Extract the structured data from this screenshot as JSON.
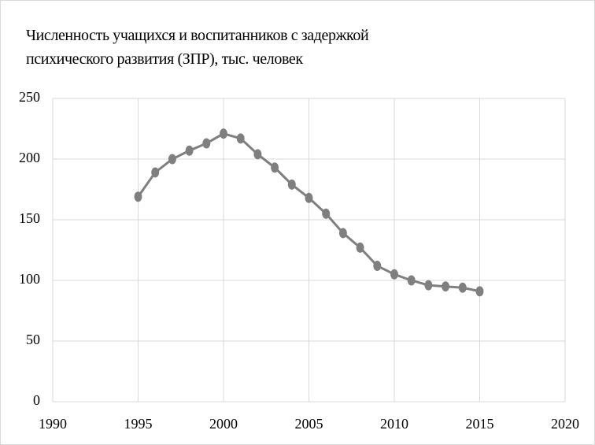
{
  "chart_data": {
    "type": "line",
    "title": "Численность учащихся и воспитанников с задержкой психического развития (ЗПР), тыс. человек",
    "x": [
      1995,
      1996,
      1997,
      1998,
      1999,
      2000,
      2001,
      2002,
      2003,
      2004,
      2005,
      2006,
      2007,
      2008,
      2009,
      2010,
      2011,
      2012,
      2013,
      2014,
      2015
    ],
    "series": [
      {
        "color": "#7f7f7f",
        "values": [
          169,
          189,
          200,
          207,
          213,
          221,
          217,
          204,
          193,
          179,
          168,
          155,
          139,
          127,
          112,
          105,
          100,
          96,
          95,
          94,
          91
        ]
      }
    ],
    "xlim": [
      1990,
      2020
    ],
    "xticks": [
      1990,
      1995,
      2000,
      2005,
      2010,
      2015,
      2020
    ],
    "ylim": [
      0,
      250
    ],
    "yticks": [
      0,
      50,
      100,
      150,
      200,
      250
    ],
    "grid": true
  }
}
